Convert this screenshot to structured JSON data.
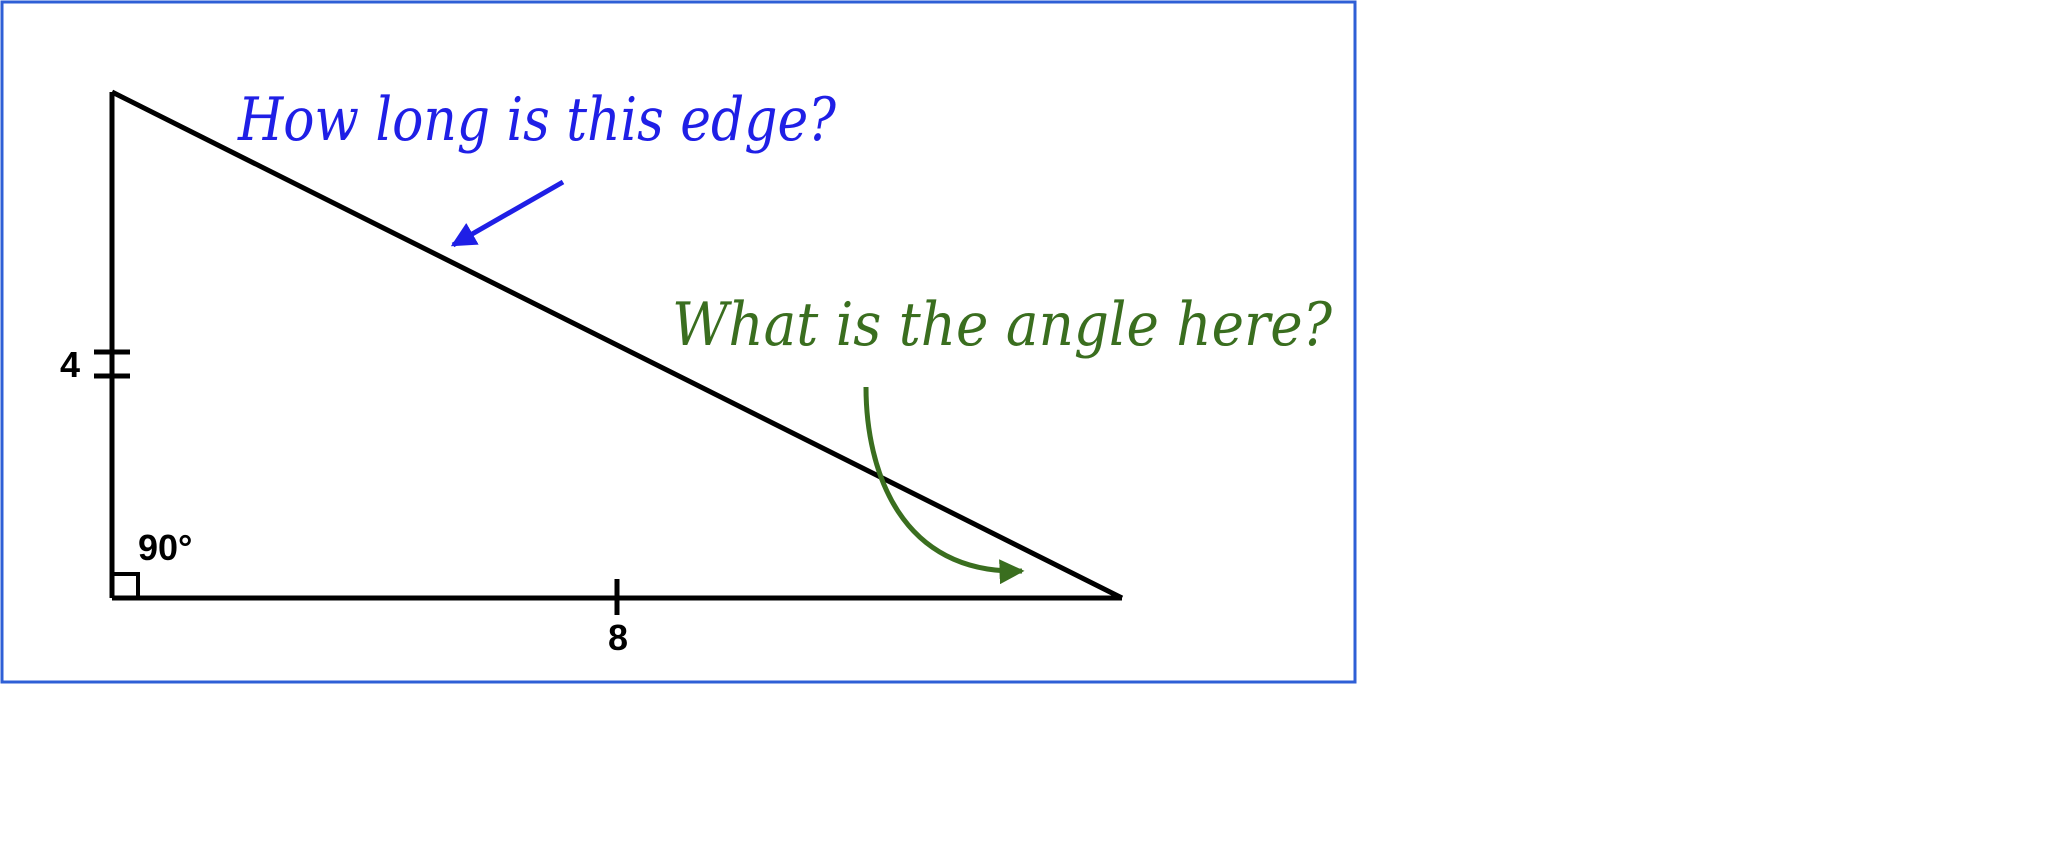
{
  "diagram": {
    "colors": {
      "frame_border": "#2f5fd6",
      "triangle": "#000000",
      "question_edge": "#1f1fe6",
      "question_angle": "#3a6e1f"
    },
    "labels": {
      "vertical_side": "4",
      "horizontal_side": "8",
      "right_angle": "90°"
    },
    "annotations": {
      "edge_question": "How long is this edge?",
      "angle_question": "What is the angle here?"
    }
  }
}
